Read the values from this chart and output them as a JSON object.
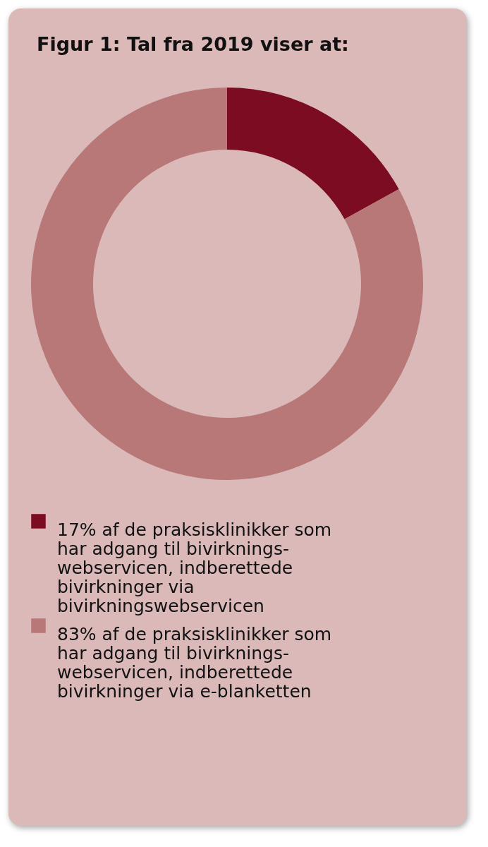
{
  "chart_data": {
    "type": "donut",
    "title": "Figur 1: Tal fra 2019 viser at:",
    "categories": [
      "17% af de praksisklinikker som har adgang til bivirknings-webservicen, indberettede bivirkninger via bivirkningswebservicen",
      "83% af de praksisklinikker som har adgang til bivirknings-webservicen, indberettede bivirkninger via e-blanketten"
    ],
    "values": [
      17,
      83
    ],
    "colors": [
      "#7b0c22",
      "#b87878"
    ],
    "legend": "bottom"
  }
}
